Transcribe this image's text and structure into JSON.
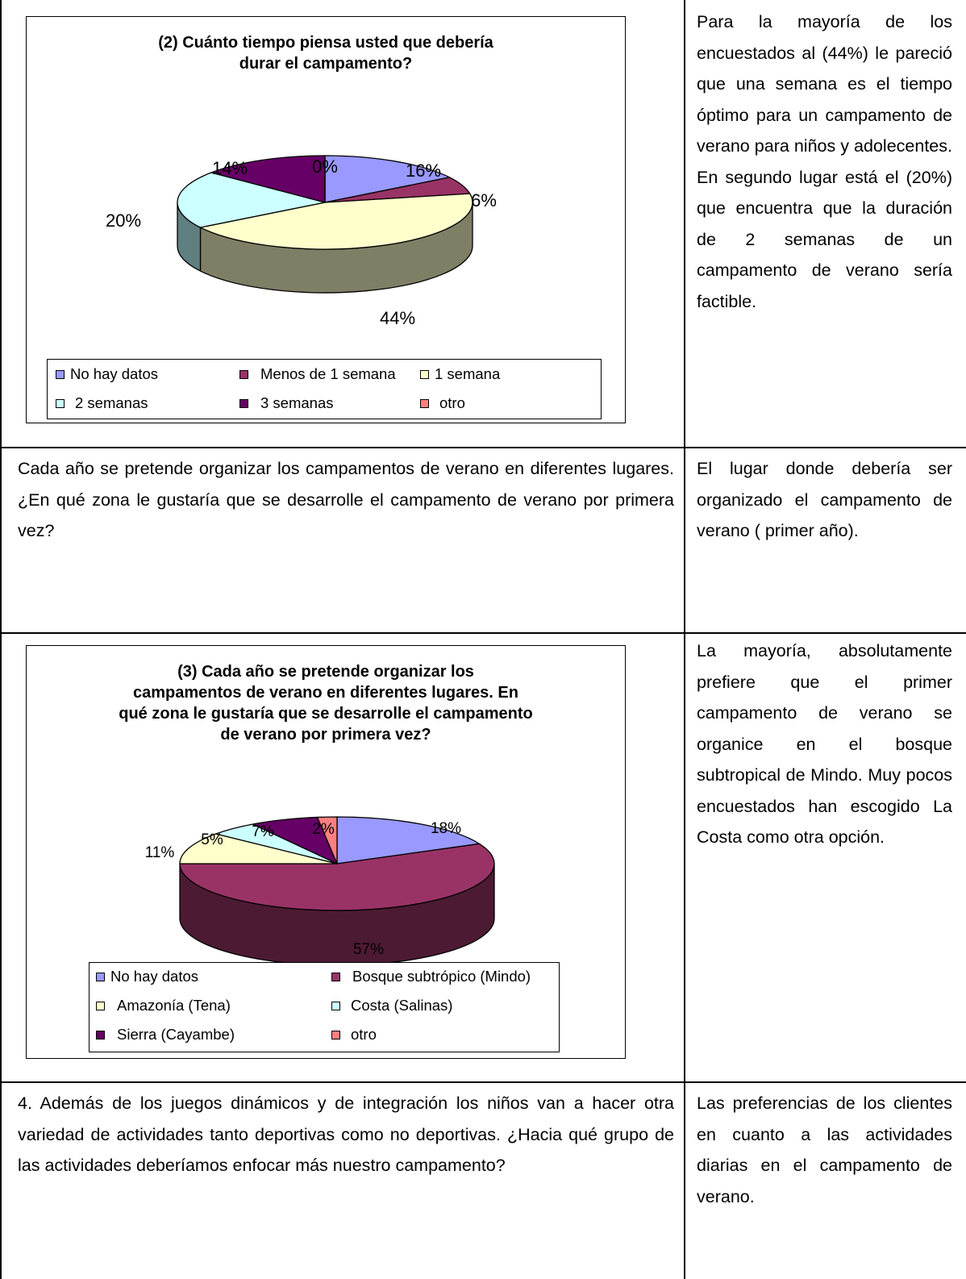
{
  "row1": {
    "chart_data": {
      "type": "pie",
      "title": "(2) Cuánto tiempo piensa usted que debería durar el campamento?",
      "title_lines": [
        "(2) Cuánto tiempo piensa usted que debería",
        "durar el campamento?"
      ],
      "slices": [
        {
          "label": "No hay datos",
          "value": 16,
          "value_label": "16%",
          "color": "#9999ff",
          "side": "#6666b3"
        },
        {
          "label": "Menos de 1 semana",
          "value": 6,
          "value_label": "6%",
          "color": "#993366",
          "side": "#6b2447"
        },
        {
          "label": "1 semana",
          "value": 44,
          "value_label": "44%",
          "color": "#ffffcc",
          "side": "#7f7f66"
        },
        {
          "label": "2 semanas",
          "value": 20,
          "value_label": "20%",
          "color": "#ccffff",
          "side": "#5f7f80"
        },
        {
          "label": "3 semanas",
          "value": 14,
          "value_label": "14%",
          "color": "#660066",
          "side": "#470047"
        },
        {
          "label": "otro",
          "value": 0,
          "value_label": "0%",
          "color": "#ff8080",
          "side": "#b35a5a"
        }
      ],
      "legend_placement": "bottom"
    },
    "side_text": "Para la mayoría de los encuestados al (44%) le pareció que una semana es el tiempo óptimo para un campamento de verano para niños y adolecentes. En segundo lugar está el (20%) que encuentra que la duración de 2 semanas de un campamento de verano sería factible."
  },
  "row2": {
    "question": "Cada año se pretende organizar los campamentos de verano en diferentes lugares. ¿En qué zona le gustaría que se desarrolle el campamento de verano por primera vez?",
    "side_text": "El lugar donde debería ser organizado el campamento de verano ( primer año)."
  },
  "row3": {
    "chart_data": {
      "type": "pie",
      "title": "(3) Cada año se pretende organizar los campamentos de verano en diferentes lugares. En qué zona le gustaría que se desarrolle el campamento de verano por primera vez?",
      "title_lines": [
        "(3) Cada año se pretende organizar los",
        "campamentos de verano en diferentes lugares. En",
        "qué zona le gustaría que se desarrolle el campamento",
        "de verano por primera vez?"
      ],
      "slices": [
        {
          "label": "No hay datos",
          "value": 18,
          "value_label": "18%",
          "color": "#9999ff",
          "side": "#6666b3"
        },
        {
          "label": "Bosque subtrópico (Mindo)",
          "value": 57,
          "value_label": "57%",
          "color": "#993366",
          "side": "#4d1a33"
        },
        {
          "label": "Amazonía (Tena)",
          "value": 11,
          "value_label": "11%",
          "color": "#ffffcc",
          "side": "#7f7f66"
        },
        {
          "label": "Costa (Salinas)",
          "value": 5,
          "value_label": "5%",
          "color": "#ccffff",
          "side": "#5f7f80"
        },
        {
          "label": "Sierra (Cayambe)",
          "value": 7,
          "value_label": "7%",
          "color": "#660066",
          "side": "#330033"
        },
        {
          "label": "otro",
          "value": 2,
          "value_label": "2%",
          "color": "#ff8080",
          "side": "#b35a5a"
        }
      ],
      "legend_placement": "bottom"
    },
    "side_text": "La mayoría, absolutamente prefiere que el primer campamento de verano se organice en el bosque subtropical de Mindo. Muy pocos encuestados han escogido La Costa como otra opción."
  },
  "row4": {
    "question": "4. Además de los juegos dinámicos y de integración los niños van a hacer otra variedad de actividades tanto deportivas como no deportivas. ¿Hacia qué grupo de las actividades deberíamos enfocar más nuestro campamento?",
    "side_text": "Las preferencias de los clientes en cuanto a las actividades diarias en el campamento de verano."
  }
}
